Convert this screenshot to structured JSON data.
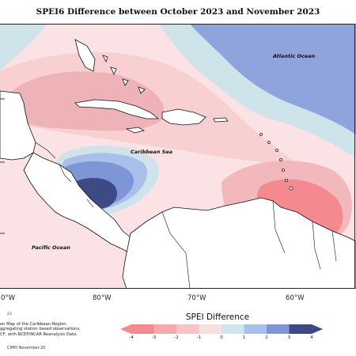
{
  "title": "SPEI6 Difference between October 2023 and November 2023",
  "map_labels": {
    "atlantic": "Atlantic Ocean",
    "caribbean": "Caribbean Sea",
    "pacific": "Pacific Ocean"
  },
  "longitude_labels": [
    "0°W",
    "80°W",
    "70°W",
    "60°W"
  ],
  "left_lat_ticks": [
    "—",
    "—",
    "—"
  ],
  "caption_lines": [
    "on Map of the Caribbean Region.",
    "ggregating station based observations,",
    "CF, with NCEP/NCAR Reanalysis Data."
  ],
  "page_number": "23",
  "credit": "CIMH November-20",
  "legend": {
    "title": "SPEI Difference",
    "ticks": [
      "-4",
      "-3",
      "-2",
      "-1",
      "0",
      "1",
      "2",
      "3",
      "4"
    ],
    "colors": [
      "#f48a8f",
      "#f6a9ab",
      "#f8c3c4",
      "#fbdfe0",
      "#ffffff",
      "#cfe3ea",
      "#a8c0ea",
      "#7f96d6",
      "#3d4a86"
    ]
  },
  "colors": {
    "ocean_blue": "#8fa3dd",
    "light_teal": "#cfe3ea",
    "pale_pink": "#fbe2e4",
    "mid_pink": "#f2b8bb",
    "strong_red": "#f48a8f",
    "dark_blue": "#3d4a86"
  }
}
